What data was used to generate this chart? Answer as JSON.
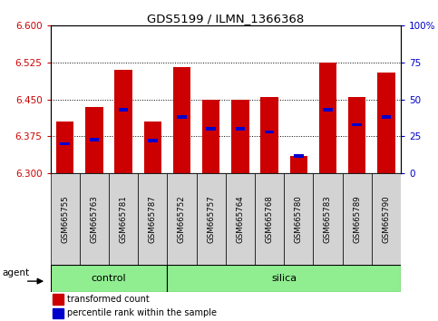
{
  "title": "GDS5199 / ILMN_1366368",
  "samples": [
    "GSM665755",
    "GSM665763",
    "GSM665781",
    "GSM665787",
    "GSM665752",
    "GSM665757",
    "GSM665764",
    "GSM665768",
    "GSM665780",
    "GSM665783",
    "GSM665789",
    "GSM665790"
  ],
  "transformed_count": [
    6.405,
    6.435,
    6.51,
    6.405,
    6.515,
    6.45,
    6.45,
    6.455,
    6.335,
    6.525,
    6.455,
    6.505
  ],
  "percentile": [
    20,
    23,
    43,
    22,
    38,
    30,
    30,
    28,
    12,
    43,
    33,
    38
  ],
  "ylim_left": [
    6.3,
    6.6
  ],
  "ylim_right": [
    0,
    100
  ],
  "yticks_left": [
    6.3,
    6.375,
    6.45,
    6.525,
    6.6
  ],
  "yticks_right": [
    0,
    25,
    50,
    75,
    100
  ],
  "bar_color": "#cc0000",
  "percentile_color": "#0000cc",
  "bar_bottom": 6.3,
  "bg_color": "#ffffff",
  "left_axis_color": "#cc0000",
  "right_axis_color": "#0000cc",
  "bar_width": 0.6,
  "legend_red": "transformed count",
  "legend_blue": "percentile rank within the sample",
  "agent_label": "agent",
  "group_label_control": "control",
  "group_label_silica": "silica",
  "control_indices": [
    0,
    3
  ],
  "silica_indices": [
    4,
    11
  ],
  "gray_box_color": "#d3d3d3",
  "green_color": "#90EE90"
}
